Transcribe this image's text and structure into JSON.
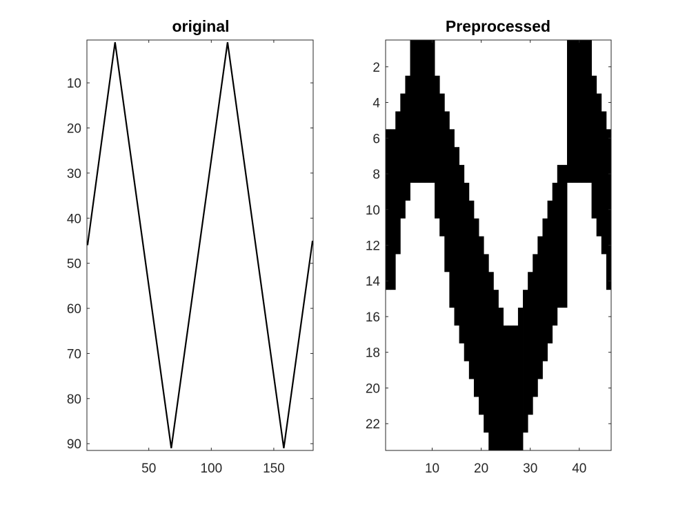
{
  "colors": {
    "background": "#ffffff",
    "axis": "#262626",
    "ink": "#000000"
  },
  "chart_data": [
    {
      "type": "heatmap",
      "colormap": "binary (black = 1, white = 0)",
      "title": "original",
      "xlabel": "",
      "ylabel": "",
      "xlim": [
        0.5,
        181.5
      ],
      "ylim": [
        0.5,
        91.5
      ],
      "y_reversed": true,
      "grid": false,
      "xticks": [
        50,
        100,
        150
      ],
      "yticks": [
        10,
        20,
        30,
        40,
        50,
        60,
        70,
        80,
        90
      ],
      "image_size": {
        "columns": 181,
        "rows": 91
      },
      "pattern": "one-pixel-wide triangle wave (zigzag line)",
      "line_vertices": [
        {
          "x": 1,
          "y": 46
        },
        {
          "x": 23,
          "y": 1
        },
        {
          "x": 68,
          "y": 91
        },
        {
          "x": 113,
          "y": 1
        },
        {
          "x": 158,
          "y": 91
        },
        {
          "x": 181,
          "y": 45
        }
      ]
    },
    {
      "type": "heatmap",
      "colormap": "binary (black = 1, white = 0)",
      "title": "Preprocessed",
      "xlabel": "",
      "ylabel": "",
      "xlim": [
        0.5,
        46.5
      ],
      "ylim": [
        0.5,
        23.5
      ],
      "y_reversed": true,
      "grid": false,
      "xticks": [
        10,
        20,
        30,
        40
      ],
      "yticks": [
        2,
        4,
        6,
        8,
        10,
        12,
        14,
        16,
        18,
        20,
        22
      ],
      "image_size": {
        "columns": 46,
        "rows": 23
      },
      "pattern": "thick triangle wave; black cells per column listed as [first_row, last_row]",
      "column_runs": [
        [
          6,
          14
        ],
        [
          6,
          14
        ],
        [
          5,
          12
        ],
        [
          4,
          10
        ],
        [
          3,
          9
        ],
        [
          1,
          8
        ],
        [
          1,
          8
        ],
        [
          1,
          8
        ],
        [
          1,
          8
        ],
        [
          1,
          8
        ],
        [
          3,
          10
        ],
        [
          4,
          11
        ],
        [
          5,
          13
        ],
        [
          6,
          15
        ],
        [
          7,
          16
        ],
        [
          8,
          17
        ],
        [
          9,
          18
        ],
        [
          10,
          19
        ],
        [
          11,
          20
        ],
        [
          12,
          21
        ],
        [
          13,
          22
        ],
        [
          14,
          23
        ],
        [
          15,
          23
        ],
        [
          16,
          23
        ],
        [
          17,
          23
        ],
        [
          17,
          23
        ],
        [
          17,
          23
        ],
        [
          16,
          23
        ],
        [
          15,
          22
        ],
        [
          14,
          21
        ],
        [
          13,
          20
        ],
        [
          12,
          19
        ],
        [
          11,
          18
        ],
        [
          10,
          17
        ],
        [
          9,
          16
        ],
        [
          8,
          15
        ],
        [
          8,
          15
        ],
        [
          1,
          8
        ],
        [
          1,
          8
        ],
        [
          1,
          8
        ],
        [
          1,
          8
        ],
        [
          1,
          8
        ],
        [
          3,
          10
        ],
        [
          4,
          11
        ],
        [
          5,
          12
        ],
        [
          6,
          14
        ]
      ]
    }
  ]
}
